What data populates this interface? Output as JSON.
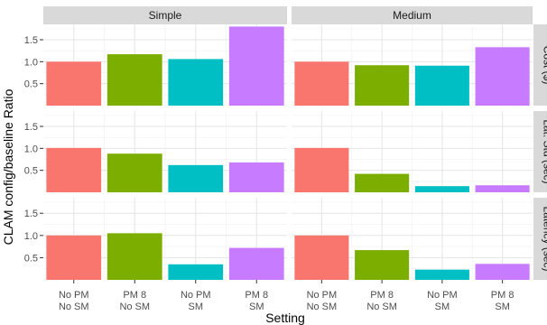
{
  "chart_data": {
    "type": "bar",
    "xlabel": "Setting",
    "ylabel": "CLAM config/baseline Ratio",
    "ylim": [
      0,
      1.85
    ],
    "yticks": [
      "0.5",
      "1.0",
      "1.5"
    ],
    "ytick_values": [
      0.5,
      1.0,
      1.5
    ],
    "grid": true,
    "legend": "none",
    "categories": [
      {
        "line1": "No PM",
        "line2": "No SM"
      },
      {
        "line1": "PM 8",
        "line2": "No SM"
      },
      {
        "line1": "No PM",
        "line2": "SM"
      },
      {
        "line1": "PM 8",
        "line2": "SM"
      }
    ],
    "colors": [
      "#F8766D",
      "#7CAE00",
      "#00BFC4",
      "#C77CFF"
    ],
    "columns": [
      "Simple",
      "Medium"
    ],
    "rows": [
      "Cost ($)",
      "Lat. Std (sec)",
      "Latency (sec)"
    ],
    "panels": [
      {
        "row": 0,
        "col": 0,
        "values": [
          1.0,
          1.17,
          1.06,
          1.8
        ]
      },
      {
        "row": 0,
        "col": 1,
        "values": [
          1.0,
          0.92,
          0.91,
          1.33
        ]
      },
      {
        "row": 1,
        "col": 0,
        "values": [
          1.01,
          0.88,
          0.62,
          0.68
        ]
      },
      {
        "row": 1,
        "col": 1,
        "values": [
          1.01,
          0.42,
          0.14,
          0.16
        ]
      },
      {
        "row": 2,
        "col": 0,
        "values": [
          1.0,
          1.05,
          0.35,
          0.72
        ]
      },
      {
        "row": 2,
        "col": 1,
        "values": [
          1.0,
          0.67,
          0.23,
          0.36
        ]
      }
    ]
  }
}
